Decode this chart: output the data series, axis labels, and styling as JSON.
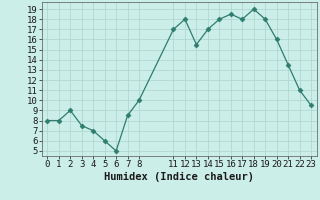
{
  "x": [
    0,
    1,
    2,
    3,
    4,
    5,
    6,
    7,
    8,
    11,
    12,
    13,
    14,
    15,
    16,
    17,
    18,
    19,
    20,
    21,
    22,
    23
  ],
  "y": [
    8,
    8,
    9,
    7.5,
    7,
    6,
    5,
    8.5,
    10,
    17,
    18,
    15.5,
    17,
    18,
    18.5,
    18,
    19,
    18,
    16,
    13.5,
    11,
    9.5
  ],
  "line_color": "#2e7d6e",
  "marker": "D",
  "marker_size": 2.5,
  "bg_color": "#cceee8",
  "grid_color": "#aad4cc",
  "xlabel": "Humidex (Indice chaleur)",
  "xlim": [
    -0.5,
    23.5
  ],
  "ylim": [
    4.5,
    19.7
  ],
  "yticks": [
    5,
    6,
    7,
    8,
    9,
    10,
    11,
    12,
    13,
    14,
    15,
    16,
    17,
    18,
    19
  ],
  "xticks": [
    0,
    1,
    2,
    3,
    4,
    5,
    6,
    7,
    8,
    11,
    12,
    13,
    14,
    15,
    16,
    17,
    18,
    19,
    20,
    21,
    22,
    23
  ],
  "font_size": 6.5,
  "xlabel_size": 7.5
}
